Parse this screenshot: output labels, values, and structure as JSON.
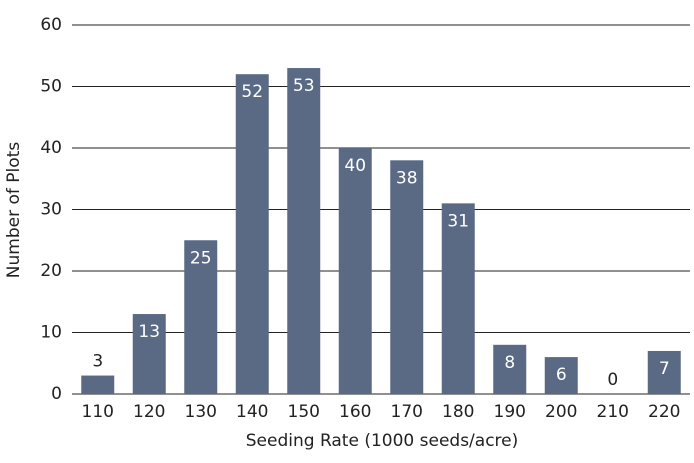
{
  "chart_data": {
    "type": "bar",
    "xlabel": "Seeding Rate (1000 seeds/acre)",
    "ylabel": "Number of Plots",
    "categories": [
      "110",
      "120",
      "130",
      "140",
      "150",
      "160",
      "170",
      "180",
      "190",
      "200",
      "210",
      "220"
    ],
    "values": [
      3,
      13,
      25,
      52,
      53,
      40,
      38,
      31,
      8,
      6,
      0,
      7
    ],
    "color": "#5a6a85",
    "ylim": [
      0,
      60
    ],
    "yticks": [
      0,
      10,
      20,
      30,
      40,
      50,
      60
    ],
    "grid": true
  }
}
